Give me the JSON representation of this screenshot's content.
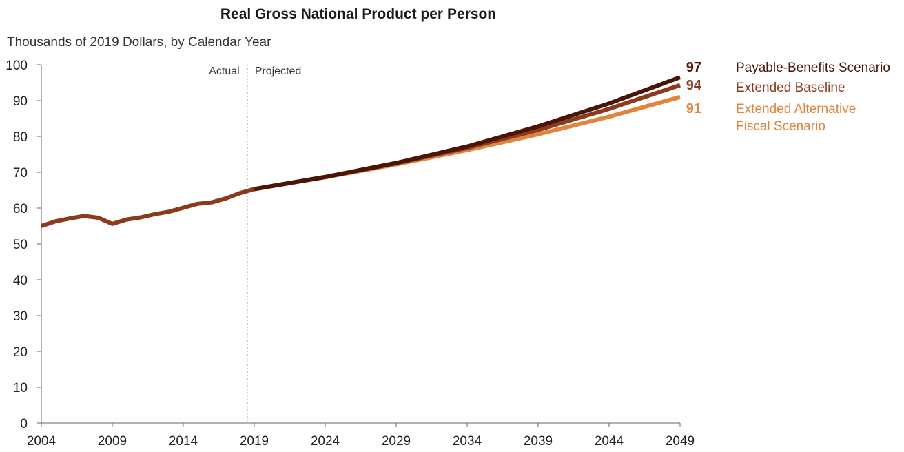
{
  "chart_data": {
    "type": "line",
    "title": "Real Gross National Product per Person",
    "subtitle": "Thousands of 2019 Dollars, by Calendar Year",
    "xlabel": "",
    "ylabel": "",
    "xlim": [
      2004,
      2049
    ],
    "ylim": [
      0,
      100
    ],
    "x_ticks": [
      2004,
      2009,
      2014,
      2019,
      2024,
      2029,
      2034,
      2039,
      2044,
      2049
    ],
    "y_ticks": [
      0,
      10,
      20,
      30,
      40,
      50,
      60,
      70,
      80,
      90,
      100
    ],
    "grid": false,
    "divider": {
      "x": 2018.5,
      "left_label": "Actual",
      "right_label": "Projected"
    },
    "historical": {
      "x": [
        2004,
        2005,
        2006,
        2007,
        2008,
        2009,
        2010,
        2011,
        2012,
        2013,
        2014,
        2015,
        2016,
        2017,
        2018,
        2019
      ],
      "values": [
        55,
        56.3,
        57.1,
        57.8,
        57.3,
        55.6,
        56.8,
        57.4,
        58.3,
        59.0,
        60.1,
        61.2,
        61.6,
        62.7,
        64.2,
        65.3
      ]
    },
    "series": [
      {
        "name": "Payable-Benefits Scenario",
        "end_label": "97",
        "color": "#4a1409",
        "x": [
          2019,
          2024,
          2029,
          2034,
          2039,
          2044,
          2049
        ],
        "values": [
          65.3,
          68.7,
          72.6,
          77.2,
          82.8,
          89.2,
          96.5
        ]
      },
      {
        "name": "Extended Baseline",
        "end_label": "94",
        "color": "#8b3a1e",
        "x": [
          2019,
          2024,
          2029,
          2034,
          2039,
          2044,
          2049
        ],
        "values": [
          65.3,
          68.7,
          72.5,
          76.8,
          81.8,
          87.7,
          94.3
        ]
      },
      {
        "name": "Extended Alternative Fiscal Scenario",
        "name_lines": [
          "Extended Alternative",
          "Fiscal Scenario"
        ],
        "end_label": "91",
        "color": "#e0843e",
        "x": [
          2019,
          2024,
          2029,
          2034,
          2039,
          2044,
          2049
        ],
        "values": [
          65.3,
          68.6,
          72.2,
          76.2,
          80.6,
          85.5,
          91.0
        ]
      }
    ],
    "historical_color": "#8b3a1e"
  }
}
